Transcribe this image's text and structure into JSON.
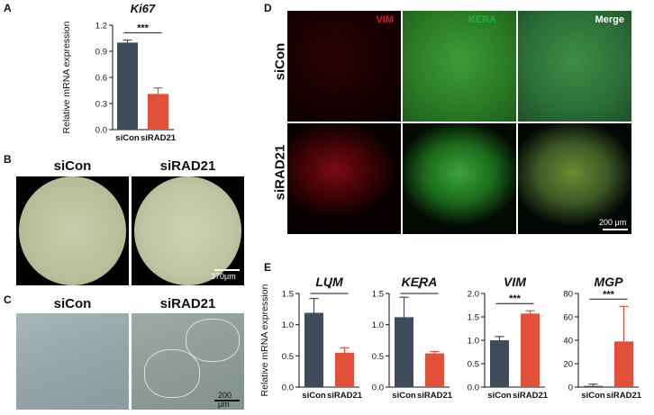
{
  "panels": {
    "A": "A",
    "B": "B",
    "C": "C",
    "D": "D",
    "E": "E"
  },
  "colors": {
    "sicon": "#3f4c5c",
    "sirad21": "#e2503a",
    "vim": "#e0141e",
    "kera": "#22b040",
    "merge_text": "#ffffff"
  },
  "panelB": {
    "labels": [
      "siCon",
      "siRAD21"
    ],
    "scale": "370μm"
  },
  "panelC": {
    "labels": [
      "siCon",
      "siRAD21"
    ],
    "scale": "200 μm"
  },
  "panelD": {
    "channels": [
      "VIM",
      "KERA",
      "Merge"
    ],
    "rows": [
      "siCon",
      "siRAD21"
    ],
    "scale": "200 μm"
  },
  "chart_data": [
    {
      "type": "bar",
      "title": "Ki67",
      "ylabel": "Relative mRNA expression",
      "categories": [
        "siCon",
        "siRAD21"
      ],
      "values": [
        1.0,
        0.41
      ],
      "errors": [
        0.03,
        0.07
      ],
      "ylim": [
        0,
        1.2
      ],
      "yticks": [
        "0.0",
        "0.3",
        "0.6",
        "0.9",
        "1.2"
      ],
      "significance": "***"
    },
    {
      "type": "bar",
      "title": "LUM",
      "ylabel": "Relative mRNA expression",
      "categories": [
        "siCon",
        "siRAD21"
      ],
      "values": [
        1.19,
        0.55
      ],
      "errors": [
        0.23,
        0.08
      ],
      "ylim": [
        0,
        1.5
      ],
      "yticks": [
        "0.0",
        "0.5",
        "1.0",
        "1.5"
      ],
      "significance": "*"
    },
    {
      "type": "bar",
      "title": "KERA",
      "ylabel": "",
      "categories": [
        "siCon",
        "siRAD21"
      ],
      "values": [
        1.12,
        0.54
      ],
      "errors": [
        0.32,
        0.03
      ],
      "ylim": [
        0,
        1.5
      ],
      "yticks": [
        "0.0",
        "0.5",
        "1.0",
        "1.5"
      ],
      "significance": "*"
    },
    {
      "type": "bar",
      "title": "VIM",
      "ylabel": "",
      "categories": [
        "siCon",
        "siRAD21"
      ],
      "values": [
        1.0,
        1.57
      ],
      "errors": [
        0.08,
        0.06
      ],
      "ylim": [
        0,
        2.0
      ],
      "yticks": [
        "0.0",
        "0.5",
        "1.0",
        "1.5",
        "2.0"
      ],
      "significance": "***"
    },
    {
      "type": "bar",
      "title": "MGP",
      "ylabel": "",
      "categories": [
        "siCon",
        "siRAD21"
      ],
      "values": [
        1.0,
        39
      ],
      "errors": [
        1.5,
        30
      ],
      "ylim": [
        0,
        80
      ],
      "yticks": [
        "0",
        "20",
        "40",
        "60",
        "80"
      ],
      "significance": "***"
    }
  ]
}
